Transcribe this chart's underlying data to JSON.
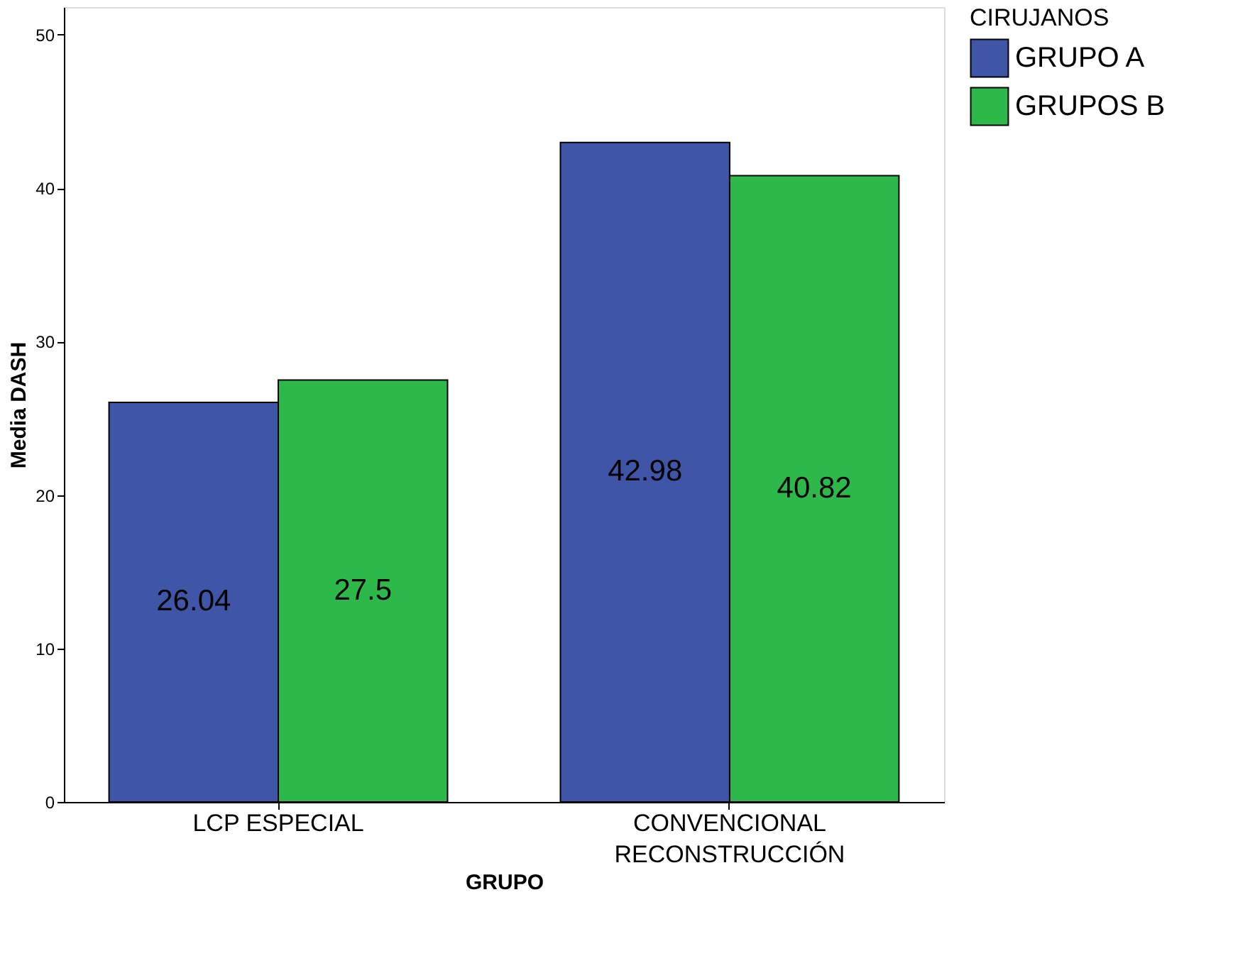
{
  "chart_data": {
    "type": "bar",
    "xlabel": "GRUPO",
    "ylabel": "Media DASH",
    "legend_title": "CIRUJANOS",
    "categories": [
      "LCP ESPECIAL",
      "CONVENCIONAL RECONSTRUCCIÓN"
    ],
    "series": [
      {
        "name": "GRUPO A",
        "color": "#3f56a8",
        "values": [
          26.04,
          42.98
        ]
      },
      {
        "name": "GRUPOS B",
        "color": "#2db84a",
        "values": [
          27.5,
          40.82
        ]
      }
    ],
    "ylim": [
      0,
      51.8
    ],
    "yticks": [
      0,
      10,
      20,
      30,
      40,
      50
    ],
    "grid": false,
    "legend": "right",
    "data_labels": true
  }
}
